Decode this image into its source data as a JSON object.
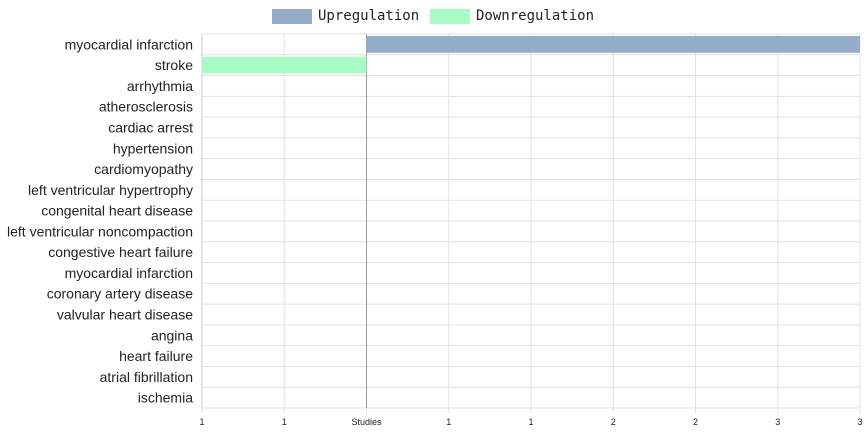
{
  "chart_data": {
    "type": "bar",
    "orientation": "horizontal",
    "title": "",
    "xlabel": "",
    "ylabel": "",
    "categories": [
      "myocardial infarction",
      "stroke",
      "arrhythmia",
      "atherosclerosis",
      "cardiac arrest",
      "hypertension",
      "cardiomyopathy",
      "left ventricular hypertrophy",
      "congenital heart disease",
      "left ventricular noncompaction",
      "congestive heart failure",
      "myocardial infarction",
      "coronary artery disease",
      "valvular heart disease",
      "angina",
      "heart failure",
      "atrial fibrillation",
      "ischemia"
    ],
    "series": [
      {
        "name": "Upregulation",
        "color": "#94aec9",
        "values": [
          3,
          0,
          0,
          0,
          0,
          0,
          0,
          0,
          0,
          0,
          0,
          0,
          0,
          0,
          0,
          0,
          0,
          0
        ]
      },
      {
        "name": "Downregulation",
        "color": "#a8fbc4",
        "values": [
          0,
          -1,
          0,
          0,
          0,
          0,
          0,
          0,
          0,
          0,
          0,
          0,
          0,
          0,
          0,
          0,
          0,
          0
        ]
      }
    ],
    "xlim": [
      -1,
      3
    ],
    "x_tick_labels": [
      "1",
      "1",
      "Studies",
      "1",
      "1",
      "2",
      "2",
      "3",
      "3"
    ],
    "grid": true,
    "legend_position": "top-center"
  }
}
